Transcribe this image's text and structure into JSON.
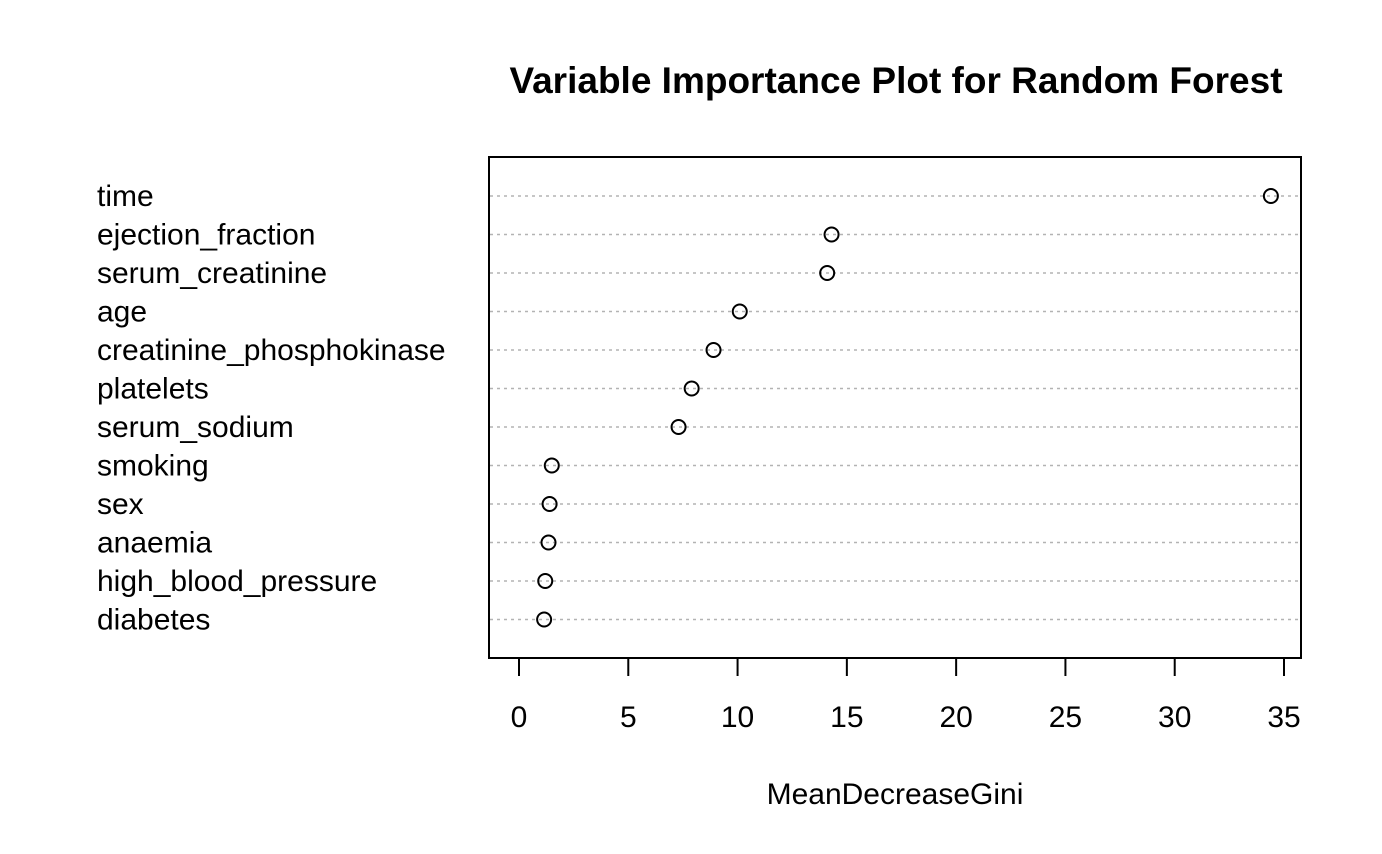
{
  "chart_data": {
    "type": "scatter",
    "title": "Variable Importance Plot for Random Forest",
    "xlabel": "MeanDecreaseGini",
    "ylabel": "",
    "xlim": [
      0,
      35
    ],
    "xticks": [
      0,
      5,
      10,
      15,
      20,
      25,
      30,
      35
    ],
    "grid": "dotted horizontal lines per variable",
    "marker": "open circle",
    "categories": [
      "time",
      "ejection_fraction",
      "serum_creatinine",
      "age",
      "creatinine_phosphokinase",
      "platelets",
      "serum_sodium",
      "smoking",
      "sex",
      "anaemia",
      "high_blood_pressure",
      "diabetes"
    ],
    "values": [
      34.4,
      14.3,
      14.1,
      10.1,
      8.9,
      7.9,
      7.3,
      1.5,
      1.4,
      1.35,
      1.2,
      1.15
    ]
  }
}
